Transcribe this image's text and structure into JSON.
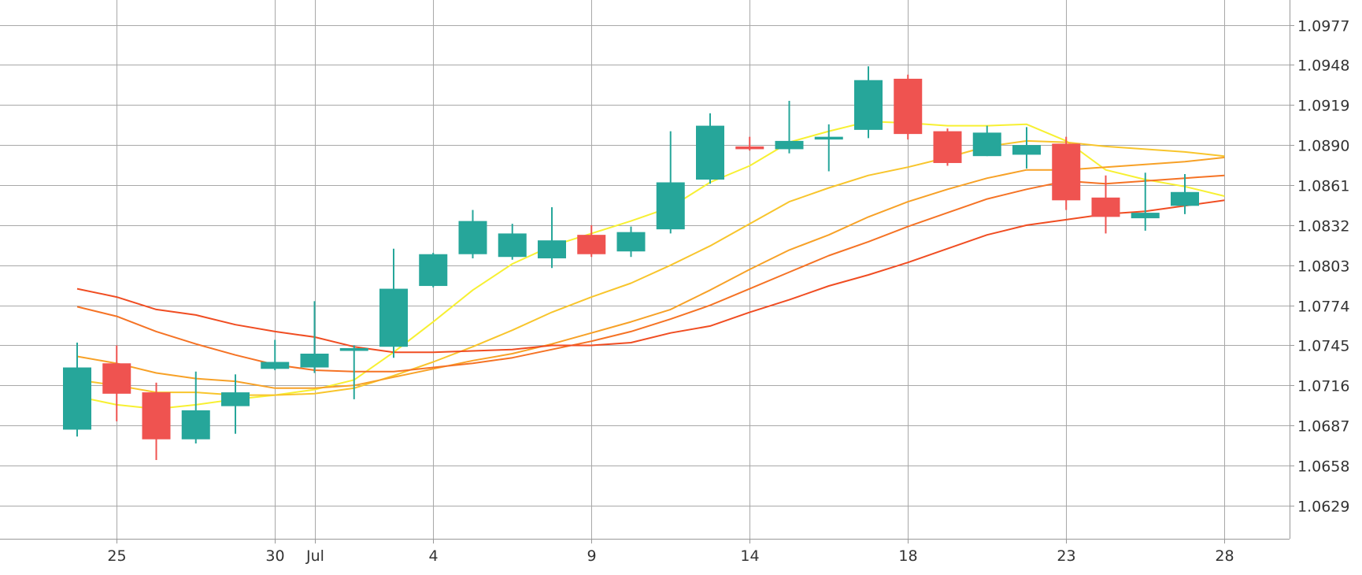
{
  "chart_data": {
    "type": "candlestick",
    "title": "",
    "xlabel": "",
    "ylabel": "",
    "grid": true,
    "ylim": [
      1.0605,
      1.0995
    ],
    "xlim": [
      -1.5,
      33
    ],
    "y_ticks": [
      1.0629,
      1.0658,
      1.0687,
      1.0716,
      1.0745,
      1.0774,
      1.0803,
      1.0832,
      1.0861,
      1.089,
      1.0919,
      1.0948,
      1.0977
    ],
    "y_tick_labels": [
      "1.0629",
      "1.0658",
      "1.0687",
      "1.0716",
      "1.0745",
      "1.0774",
      "1.0803",
      "1.0832",
      "1.0861",
      "1.0890",
      "1.0919",
      "1.0948",
      "1.0977"
    ],
    "x_ticks": [
      {
        "x": 1,
        "label": "25"
      },
      {
        "x": 5,
        "label": "30"
      },
      {
        "x": 6,
        "label": "Jul"
      },
      {
        "x": 9,
        "label": "4"
      },
      {
        "x": 13,
        "label": "9"
      },
      {
        "x": 17,
        "label": "14"
      },
      {
        "x": 21,
        "label": "18"
      },
      {
        "x": 25,
        "label": "23"
      },
      {
        "x": 29,
        "label": "28"
      }
    ],
    "colors": {
      "up": "#26a69a",
      "down": "#ef5350"
    },
    "candles": [
      {
        "x": 0,
        "open": 1.0684,
        "high": 1.0747,
        "low": 1.0679,
        "close": 1.0729
      },
      {
        "x": 1,
        "open": 1.0732,
        "high": 1.0745,
        "low": 1.069,
        "close": 1.071
      },
      {
        "x": 2,
        "open": 1.0711,
        "high": 1.0718,
        "low": 1.0662,
        "close": 1.0677
      },
      {
        "x": 3,
        "open": 1.0677,
        "high": 1.0726,
        "low": 1.0674,
        "close": 1.0698
      },
      {
        "x": 4,
        "open": 1.0701,
        "high": 1.0724,
        "low": 1.0681,
        "close": 1.0711
      },
      {
        "x": 5,
        "open": 1.0728,
        "high": 1.0749,
        "low": 1.0727,
        "close": 1.0733
      },
      {
        "x": 6,
        "open": 1.0729,
        "high": 1.0777,
        "low": 1.0725,
        "close": 1.0739
      },
      {
        "x": 7,
        "open": 1.0741,
        "high": 1.0745,
        "low": 1.0706,
        "close": 1.0743
      },
      {
        "x": 8,
        "open": 1.0744,
        "high": 1.0815,
        "low": 1.0736,
        "close": 1.0786
      },
      {
        "x": 9,
        "open": 1.0788,
        "high": 1.0812,
        "low": 1.0787,
        "close": 1.0811
      },
      {
        "x": 10,
        "open": 1.0811,
        "high": 1.0843,
        "low": 1.0808,
        "close": 1.0835
      },
      {
        "x": 11,
        "open": 1.0809,
        "high": 1.0833,
        "low": 1.0807,
        "close": 1.0826
      },
      {
        "x": 12,
        "open": 1.0808,
        "high": 1.0845,
        "low": 1.0801,
        "close": 1.0821
      },
      {
        "x": 13,
        "open": 1.0825,
        "high": 1.0832,
        "low": 1.0809,
        "close": 1.0811
      },
      {
        "x": 14,
        "open": 1.0813,
        "high": 1.0831,
        "low": 1.0809,
        "close": 1.0827
      },
      {
        "x": 15,
        "open": 1.0829,
        "high": 1.09,
        "low": 1.0826,
        "close": 1.0863
      },
      {
        "x": 16,
        "open": 1.0865,
        "high": 1.0913,
        "low": 1.0862,
        "close": 1.0904
      },
      {
        "x": 17,
        "open": 1.0889,
        "high": 1.0896,
        "low": 1.0886,
        "close": 1.0887
      },
      {
        "x": 18,
        "open": 1.0887,
        "high": 1.0922,
        "low": 1.0884,
        "close": 1.0893
      },
      {
        "x": 19,
        "open": 1.0894,
        "high": 1.0905,
        "low": 1.0871,
        "close": 1.0896
      },
      {
        "x": 20,
        "open": 1.0901,
        "high": 1.0947,
        "low": 1.0895,
        "close": 1.0937
      },
      {
        "x": 21,
        "open": 1.0938,
        "high": 1.0941,
        "low": 1.0894,
        "close": 1.0898
      },
      {
        "x": 22,
        "open": 1.09,
        "high": 1.0902,
        "low": 1.0875,
        "close": 1.0877
      },
      {
        "x": 23,
        "open": 1.0882,
        "high": 1.0904,
        "low": 1.0882,
        "close": 1.0899
      },
      {
        "x": 24,
        "open": 1.0883,
        "high": 1.0903,
        "low": 1.0873,
        "close": 1.089
      },
      {
        "x": 25,
        "open": 1.0891,
        "high": 1.0896,
        "low": 1.0843,
        "close": 1.085
      },
      {
        "x": 26,
        "open": 1.0852,
        "high": 1.0868,
        "low": 1.0826,
        "close": 1.0838
      },
      {
        "x": 27,
        "open": 1.0837,
        "high": 1.087,
        "low": 1.0828,
        "close": 1.0841
      },
      {
        "x": 28,
        "open": 1.0846,
        "high": 1.0869,
        "low": 1.084,
        "close": 1.0856
      }
    ],
    "series": [
      {
        "type": "line",
        "color": "#f7f032",
        "x": [
          0,
          1,
          2,
          3,
          4,
          5,
          6,
          7,
          8,
          9,
          10,
          11,
          12,
          13,
          14,
          15,
          16,
          17,
          18,
          19,
          20,
          21,
          22,
          23,
          24,
          25,
          26,
          27,
          28,
          29
        ],
        "values": [
          1.0708,
          1.0702,
          1.0699,
          1.0702,
          1.0706,
          1.0709,
          1.0713,
          1.072,
          1.074,
          1.0762,
          1.0785,
          1.0804,
          1.0817,
          1.0826,
          1.0835,
          1.0845,
          1.0863,
          1.0875,
          1.0892,
          1.09,
          1.0907,
          1.0906,
          1.0904,
          1.0904,
          1.0905,
          1.0893,
          1.0872,
          1.0865,
          1.086,
          1.0853
        ]
      },
      {
        "type": "line",
        "color": "#f8c52c",
        "x": [
          0,
          1,
          2,
          3,
          4,
          5,
          6,
          7,
          8,
          9,
          10,
          11,
          12,
          13,
          14,
          15,
          16,
          17,
          18,
          19,
          20,
          21,
          22,
          23,
          24,
          25,
          26,
          27,
          28,
          29
        ],
        "values": [
          1.072,
          1.0716,
          1.0711,
          1.0711,
          1.0709,
          1.0709,
          1.071,
          1.0714,
          1.0723,
          1.0733,
          1.0744,
          1.0756,
          1.0769,
          1.078,
          1.079,
          1.0803,
          1.0817,
          1.0833,
          1.0849,
          1.0859,
          1.0868,
          1.0874,
          1.0881,
          1.0889,
          1.0893,
          1.0892,
          1.0889,
          1.0887,
          1.0885,
          1.0882
        ]
      },
      {
        "type": "line",
        "color": "#f7a127",
        "x": [
          0,
          1,
          2,
          3,
          4,
          5,
          6,
          7,
          8,
          9,
          10,
          11,
          12,
          13,
          14,
          15,
          16,
          17,
          18,
          19,
          20,
          21,
          22,
          23,
          24,
          25,
          26,
          27,
          28,
          29
        ],
        "values": [
          1.0737,
          1.0732,
          1.0725,
          1.0721,
          1.0719,
          1.0714,
          1.0714,
          1.0716,
          1.0722,
          1.0728,
          1.0734,
          1.0739,
          1.0746,
          1.0754,
          1.0762,
          1.0771,
          1.0785,
          1.08,
          1.0814,
          1.0825,
          1.0838,
          1.0849,
          1.0858,
          1.0866,
          1.0872,
          1.0872,
          1.0874,
          1.0876,
          1.0878,
          1.0881
        ]
      },
      {
        "type": "line",
        "color": "#f57325",
        "x": [
          0,
          1,
          2,
          3,
          4,
          5,
          6,
          7,
          8,
          9,
          10,
          11,
          12,
          13,
          14,
          15,
          16,
          17,
          18,
          19,
          20,
          21,
          22,
          23,
          24,
          25,
          26,
          27,
          28,
          29
        ],
        "values": [
          1.0773,
          1.0766,
          1.0755,
          1.0746,
          1.0738,
          1.0731,
          1.0727,
          1.0726,
          1.0726,
          1.0729,
          1.0732,
          1.0736,
          1.0742,
          1.0748,
          1.0755,
          1.0764,
          1.0774,
          1.0786,
          1.0798,
          1.081,
          1.082,
          1.0831,
          1.0841,
          1.0851,
          1.0858,
          1.0864,
          1.0862,
          1.0864,
          1.0866,
          1.0868
        ]
      },
      {
        "type": "line",
        "color": "#f04d22",
        "x": [
          0,
          1,
          2,
          3,
          4,
          5,
          6,
          7,
          8,
          9,
          10,
          11,
          12,
          13,
          14,
          15,
          16,
          17,
          18,
          19,
          20,
          21,
          22,
          23,
          24,
          25,
          26,
          27,
          28,
          29
        ],
        "values": [
          1.0786,
          1.078,
          1.0771,
          1.0767,
          1.076,
          1.0755,
          1.0751,
          1.0744,
          1.074,
          1.074,
          1.0741,
          1.0742,
          1.0745,
          1.0745,
          1.0747,
          1.0754,
          1.0759,
          1.0769,
          1.0778,
          1.0788,
          1.0796,
          1.0805,
          1.0815,
          1.0825,
          1.0832,
          1.0836,
          1.084,
          1.0842,
          1.0846,
          1.085
        ]
      }
    ]
  }
}
